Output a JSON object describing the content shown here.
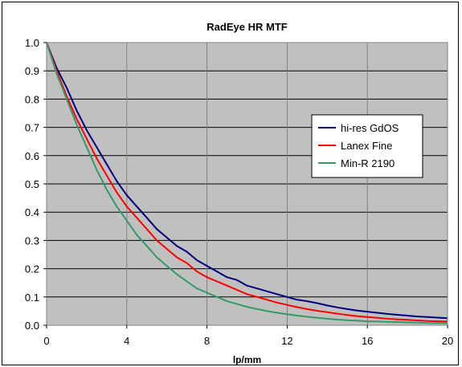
{
  "chart_data": {
    "type": "line",
    "title": "RadEye HR MTF",
    "xlabel": "lp/mm",
    "ylabel": "",
    "xlim": [
      0,
      20
    ],
    "ylim": [
      0,
      1.0
    ],
    "xticks": [
      0,
      4,
      8,
      12,
      16,
      20
    ],
    "yticks": [
      0.0,
      0.1,
      0.2,
      0.3,
      0.4,
      0.5,
      0.6,
      0.7,
      0.8,
      0.9,
      1.0
    ],
    "ytick_labels": [
      "0.0",
      "0.1",
      "0.2",
      "0.3",
      "0.4",
      "0.5",
      "0.6",
      "0.7",
      "0.8",
      "0.9",
      "1.0"
    ],
    "grid": true,
    "plot_background": "#C0C0C0",
    "legend_position": "right",
    "series": [
      {
        "name": "hi-res GdOS",
        "color": "#000080",
        "x": [
          0,
          0.5,
          1,
          1.5,
          2,
          2.5,
          3,
          3.5,
          4,
          4.5,
          5,
          5.5,
          6,
          6.5,
          7,
          7.5,
          8,
          8.5,
          9,
          9.5,
          10,
          10.5,
          11,
          11.5,
          12,
          12.5,
          13,
          13.5,
          14,
          14.5,
          15,
          15.5,
          16,
          16.5,
          17,
          17.5,
          18,
          18.5,
          19,
          19.5,
          20
        ],
        "values": [
          1.0,
          0.91,
          0.84,
          0.76,
          0.69,
          0.63,
          0.57,
          0.51,
          0.46,
          0.42,
          0.38,
          0.34,
          0.31,
          0.28,
          0.26,
          0.23,
          0.21,
          0.19,
          0.17,
          0.16,
          0.14,
          0.13,
          0.12,
          0.11,
          0.1,
          0.09,
          0.085,
          0.078,
          0.07,
          0.063,
          0.057,
          0.052,
          0.048,
          0.044,
          0.04,
          0.037,
          0.034,
          0.031,
          0.029,
          0.027,
          0.025
        ]
      },
      {
        "name": "Lanex Fine",
        "color": "#FF0000",
        "x": [
          0,
          0.5,
          1,
          1.5,
          2,
          2.5,
          3,
          3.5,
          4,
          4.5,
          5,
          5.5,
          6,
          6.5,
          7,
          7.5,
          8,
          8.5,
          9,
          9.5,
          10,
          10.5,
          11,
          11.5,
          12,
          12.5,
          13,
          13.5,
          14,
          14.5,
          15,
          15.5,
          16,
          16.5,
          17,
          17.5,
          18,
          18.5,
          19,
          19.5,
          20
        ],
        "values": [
          1.0,
          0.9,
          0.81,
          0.73,
          0.66,
          0.59,
          0.53,
          0.47,
          0.42,
          0.38,
          0.34,
          0.3,
          0.27,
          0.24,
          0.22,
          0.19,
          0.17,
          0.155,
          0.14,
          0.125,
          0.11,
          0.1,
          0.09,
          0.08,
          0.072,
          0.064,
          0.057,
          0.051,
          0.046,
          0.041,
          0.036,
          0.032,
          0.029,
          0.026,
          0.023,
          0.021,
          0.019,
          0.017,
          0.015,
          0.014,
          0.013
        ]
      },
      {
        "name": "Min-R 2190",
        "color": "#339966",
        "x": [
          0,
          0.5,
          1,
          1.5,
          2,
          2.5,
          3,
          3.5,
          4,
          4.5,
          5,
          5.5,
          6,
          6.5,
          7,
          7.5,
          8,
          8.5,
          9,
          9.5,
          10,
          10.5,
          11,
          11.5,
          12,
          12.5,
          13,
          13.5,
          14,
          14.5,
          15,
          15.5,
          16,
          16.5,
          17,
          17.5,
          18,
          18.5,
          19,
          19.5,
          20
        ],
        "values": [
          1.0,
          0.89,
          0.8,
          0.71,
          0.63,
          0.55,
          0.48,
          0.42,
          0.37,
          0.32,
          0.28,
          0.24,
          0.21,
          0.18,
          0.155,
          0.13,
          0.115,
          0.1,
          0.085,
          0.075,
          0.065,
          0.057,
          0.05,
          0.044,
          0.039,
          0.034,
          0.03,
          0.026,
          0.023,
          0.02,
          0.018,
          0.016,
          0.014,
          0.013,
          0.012,
          0.011,
          0.01,
          0.009,
          0.008,
          0.0075,
          0.007
        ]
      }
    ]
  }
}
